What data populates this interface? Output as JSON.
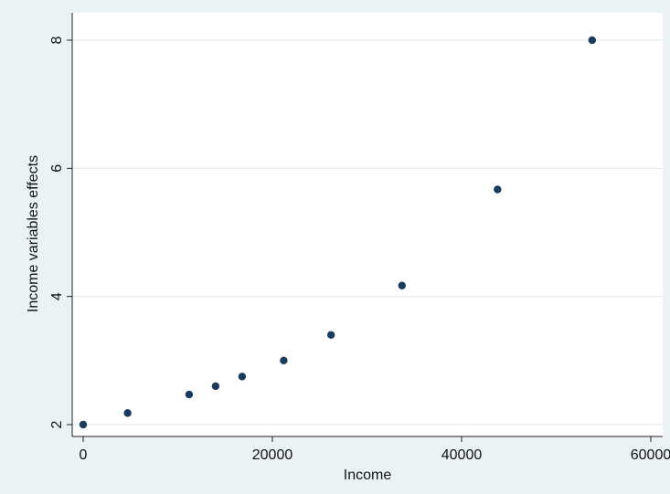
{
  "chart_data": {
    "type": "scatter",
    "title": "",
    "xlabel": "Income",
    "ylabel": "Income variables effects",
    "xlim": [
      0,
      60000
    ],
    "ylim": [
      2,
      8
    ],
    "xticks": [
      0,
      20000,
      40000,
      60000
    ],
    "xtick_labels": [
      "0",
      "20000",
      "40000",
      "60000"
    ],
    "yticks": [
      2,
      4,
      6,
      8
    ],
    "ytick_labels": [
      "2",
      "4",
      "6",
      "8"
    ],
    "grid": "horizontal",
    "points": [
      {
        "x": 0,
        "y": 2.0
      },
      {
        "x": 4700,
        "y": 2.18
      },
      {
        "x": 11200,
        "y": 2.47
      },
      {
        "x": 14000,
        "y": 2.6
      },
      {
        "x": 16800,
        "y": 2.75
      },
      {
        "x": 21200,
        "y": 3.0
      },
      {
        "x": 26200,
        "y": 3.4
      },
      {
        "x": 33700,
        "y": 4.17
      },
      {
        "x": 43800,
        "y": 5.67
      },
      {
        "x": 53800,
        "y": 8.0
      }
    ],
    "colors": {
      "background": "#eaf2f3",
      "plot_area": "#ffffff",
      "grid": "#e3ecef",
      "marker": "#1a3a5e",
      "axis": "#222222"
    }
  }
}
